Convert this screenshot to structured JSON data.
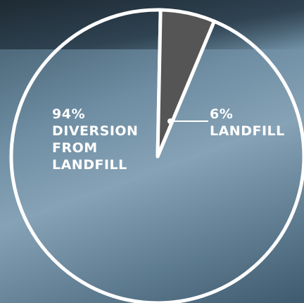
{
  "chart_data": {
    "type": "pie",
    "categories": [
      "DIVERSION FROM LANDFILL",
      "LANDFILL"
    ],
    "values": [
      94,
      6
    ],
    "value_labels": [
      "94%",
      "6%"
    ],
    "colors": [
      "none",
      "#555555"
    ]
  }
}
